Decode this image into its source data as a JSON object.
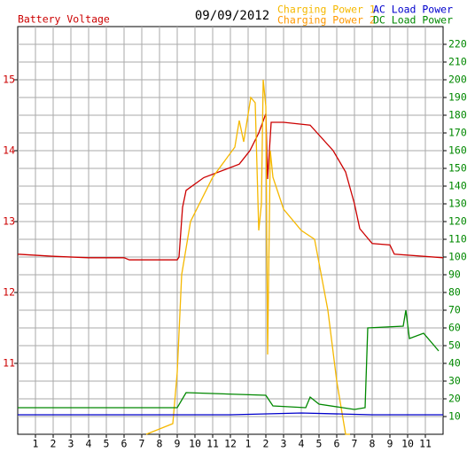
{
  "chart_data": {
    "type": "line",
    "title": "09/09/2012",
    "y_label": "Battery Voltage",
    "y_label_color": "#cc0000",
    "y2_color": "#008800",
    "xlim": [
      0,
      24
    ],
    "xticks": [
      1,
      2,
      3,
      4,
      5,
      6,
      7,
      8,
      9,
      10,
      11,
      12,
      {
        "value": 13,
        "label": "1"
      },
      {
        "value": 14,
        "label": "2"
      },
      {
        "value": 15,
        "label": "3"
      },
      {
        "value": 16,
        "label": "4"
      },
      {
        "value": 17,
        "label": "5"
      },
      {
        "value": 18,
        "label": "6"
      },
      {
        "value": 19,
        "label": "7"
      },
      {
        "value": 20,
        "label": "8"
      },
      {
        "value": 21,
        "label": "9"
      },
      {
        "value": 22,
        "label": "10"
      },
      {
        "value": 23,
        "label": "11"
      }
    ],
    "ylim": [
      10,
      15.75
    ],
    "yticks": [
      11,
      12,
      13,
      14,
      15
    ],
    "y2lim": [
      0,
      230
    ],
    "y2ticks": [
      10,
      20,
      30,
      40,
      50,
      60,
      70,
      80,
      90,
      100,
      110,
      120,
      130,
      140,
      150,
      160,
      170,
      180,
      190,
      200,
      210,
      220
    ],
    "grid": true,
    "series": [
      {
        "name": "Battery Voltage",
        "color": "#cc0000",
        "axis": "y",
        "x": [
          0,
          2,
          4,
          6,
          6.3,
          9,
          9.1,
          9.3,
          9.5,
          10.5,
          12.5,
          13.1,
          13.6,
          14,
          14.1,
          14.3,
          15,
          16.5,
          17.8,
          18.5,
          19,
          19.3,
          20,
          21,
          21.25,
          24
        ],
        "values": [
          12.54,
          12.51,
          12.49,
          12.49,
          12.46,
          12.46,
          12.5,
          13.2,
          13.44,
          13.62,
          13.81,
          14.0,
          14.25,
          14.52,
          13.6,
          14.4,
          14.4,
          14.36,
          14.0,
          13.7,
          13.25,
          12.9,
          12.69,
          12.67,
          12.54,
          12.49
        ]
      },
      {
        "name": "Charging Power 1",
        "color": "#f5b800",
        "axis": "y2",
        "x": [
          7.25,
          8.75,
          9.0,
          9.25,
          9.75,
          11,
          12.25,
          12.5,
          12.75,
          13.15,
          13.4,
          13.6,
          13.75,
          13.85,
          14.0,
          14.1,
          14.25,
          14.4,
          15,
          16,
          16.75,
          17.5,
          18,
          18.25,
          18.5,
          18.75
        ],
        "values": [
          0,
          6,
          35,
          90,
          120,
          145,
          162,
          177,
          165,
          190,
          187,
          115,
          130,
          200,
          185,
          45,
          160,
          145,
          127,
          115,
          110,
          70,
          30,
          15,
          0,
          0
        ]
      },
      {
        "name": "Charging Power 2",
        "color": "#ff9900",
        "axis": "y2",
        "x": [],
        "values": []
      },
      {
        "name": "AC Load Power",
        "color": "#0000cc",
        "axis": "y2",
        "x": [
          0,
          4,
          8,
          12,
          16,
          20,
          24
        ],
        "values": [
          11,
          11,
          11,
          11,
          12,
          11,
          11
        ]
      },
      {
        "name": "DC Load Power",
        "color": "#008800",
        "axis": "y2",
        "x": [
          0,
          9.0,
          9.5,
          14,
          14.4,
          16.25,
          16.5,
          17,
          19,
          19.6,
          19.75,
          21.75,
          21.9,
          22.1,
          22.9,
          23.5,
          23.75
        ],
        "values": [
          15,
          15,
          23.5,
          22,
          16,
          15,
          21,
          17,
          14,
          15,
          60,
          61,
          70,
          54,
          57,
          50,
          47
        ]
      }
    ]
  }
}
